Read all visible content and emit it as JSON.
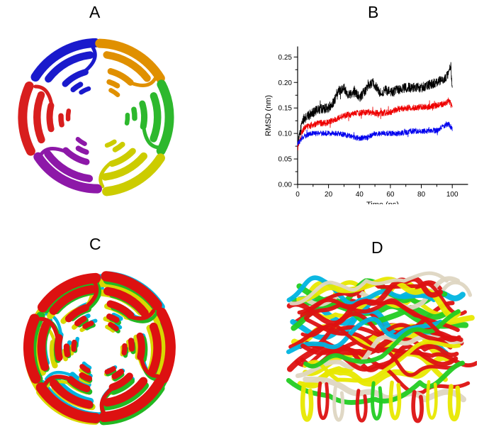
{
  "figure": {
    "background": "#ffffff",
    "panels": [
      {
        "label": "A",
        "name": "protein-ring-top-view",
        "description": "Ribbon diagram, top view of six-subunit ring",
        "subunit_colors": [
          "#1a1acc",
          "#e09000",
          "#2db82d",
          "#cccc00",
          "#8d18a8",
          "#d81e1e"
        ]
      },
      {
        "label": "B",
        "name": "rmsd-plot"
      },
      {
        "label": "C",
        "name": "superimposed-ring-top-view",
        "overlay_colors": [
          "#00b4e0",
          "#d8d800",
          "#22b822",
          "#dd1111"
        ]
      },
      {
        "label": "D",
        "name": "superimposed-side-view",
        "overlay_colors": [
          "#dd1111",
          "#22cc22",
          "#e8e800",
          "#00b4e0",
          "#ded6c2"
        ]
      }
    ]
  },
  "chart_data": {
    "type": "line",
    "title": "",
    "xlabel": "Time (ns)",
    "ylabel": "RMSD (nm)",
    "xlim": [
      0,
      110
    ],
    "ylim": [
      0.0,
      0.27
    ],
    "x_ticks": [
      0,
      20,
      40,
      60,
      80,
      100
    ],
    "y_ticks": [
      0.0,
      0.05,
      0.1,
      0.15,
      0.2,
      0.25
    ],
    "grid": false,
    "legend_position": "none",
    "series": [
      {
        "name": "trace-black",
        "color": "#000000",
        "noise": 0.01,
        "anchors": [
          [
            0,
            0.075
          ],
          [
            3,
            0.125
          ],
          [
            5,
            0.13
          ],
          [
            10,
            0.142
          ],
          [
            15,
            0.148
          ],
          [
            20,
            0.15
          ],
          [
            23,
            0.16
          ],
          [
            27,
            0.185
          ],
          [
            30,
            0.19
          ],
          [
            33,
            0.175
          ],
          [
            37,
            0.185
          ],
          [
            40,
            0.17
          ],
          [
            44,
            0.185
          ],
          [
            48,
            0.2
          ],
          [
            50,
            0.195
          ],
          [
            53,
            0.18
          ],
          [
            57,
            0.185
          ],
          [
            60,
            0.18
          ],
          [
            65,
            0.185
          ],
          [
            70,
            0.19
          ],
          [
            75,
            0.19
          ],
          [
            80,
            0.19
          ],
          [
            85,
            0.195
          ],
          [
            90,
            0.2
          ],
          [
            94,
            0.205
          ],
          [
            97,
            0.215
          ],
          [
            99,
            0.235
          ],
          [
            100,
            0.185
          ]
        ]
      },
      {
        "name": "trace-red",
        "color": "#ee0000",
        "noise": 0.0065,
        "anchors": [
          [
            0,
            0.07
          ],
          [
            3,
            0.105
          ],
          [
            5,
            0.112
          ],
          [
            10,
            0.118
          ],
          [
            15,
            0.12
          ],
          [
            20,
            0.122
          ],
          [
            25,
            0.128
          ],
          [
            30,
            0.135
          ],
          [
            35,
            0.138
          ],
          [
            40,
            0.14
          ],
          [
            45,
            0.142
          ],
          [
            50,
            0.14
          ],
          [
            55,
            0.14
          ],
          [
            60,
            0.142
          ],
          [
            65,
            0.148
          ],
          [
            70,
            0.15
          ],
          [
            75,
            0.15
          ],
          [
            80,
            0.152
          ],
          [
            85,
            0.152
          ],
          [
            90,
            0.155
          ],
          [
            95,
            0.158
          ],
          [
            98,
            0.165
          ],
          [
            100,
            0.15
          ]
        ]
      },
      {
        "name": "trace-blue",
        "color": "#0000ee",
        "noise": 0.0055,
        "anchors": [
          [
            0,
            0.078
          ],
          [
            3,
            0.092
          ],
          [
            5,
            0.096
          ],
          [
            10,
            0.1
          ],
          [
            15,
            0.1
          ],
          [
            20,
            0.1
          ],
          [
            25,
            0.1
          ],
          [
            30,
            0.098
          ],
          [
            35,
            0.094
          ],
          [
            40,
            0.09
          ],
          [
            45,
            0.092
          ],
          [
            50,
            0.1
          ],
          [
            55,
            0.1
          ],
          [
            60,
            0.1
          ],
          [
            65,
            0.1
          ],
          [
            70,
            0.102
          ],
          [
            75,
            0.105
          ],
          [
            80,
            0.104
          ],
          [
            85,
            0.105
          ],
          [
            90,
            0.106
          ],
          [
            95,
            0.115
          ],
          [
            98,
            0.118
          ],
          [
            100,
            0.108
          ]
        ]
      }
    ]
  }
}
